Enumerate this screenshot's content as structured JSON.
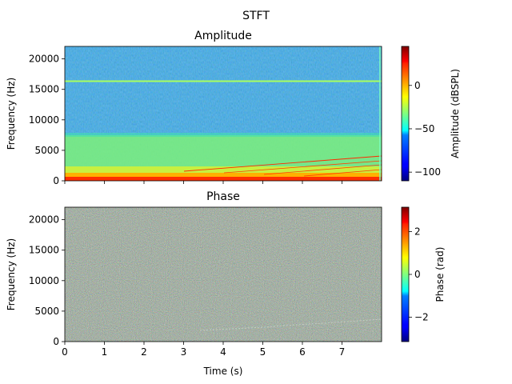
{
  "figure": {
    "title": "STFT"
  },
  "chart_data": [
    {
      "type": "heatmap",
      "title": "Amplitude",
      "xlabel": "",
      "ylabel": "Frequency (Hz)",
      "xlim": [
        0,
        8
      ],
      "ylim": [
        0,
        22050
      ],
      "x_ticks": [
        "0",
        "1",
        "2",
        "3",
        "4",
        "5",
        "6",
        "7"
      ],
      "x_ticks_shown": false,
      "y_ticks": [
        0,
        5000,
        10000,
        15000,
        20000
      ],
      "colormap": "jet",
      "colorbar": {
        "label": "Amplitude (dBSPL)",
        "range": [
          -110,
          45
        ],
        "ticks": [
          0,
          -50,
          -100
        ],
        "tick_labels": [
          "0",
          "−50",
          "−100"
        ]
      },
      "features": {
        "noise_floor_dB_above_7500Hz": -30,
        "band_1000_7500Hz_dB": -10,
        "band_0_1000Hz_dB": 15,
        "tone_line_hz": 16200,
        "tone_line_dB": -5,
        "chirp_harmonics_hz_at_end": [
          4000,
          3300,
          2600,
          1800
        ]
      }
    },
    {
      "type": "heatmap",
      "title": "Phase",
      "xlabel": "Time (s)",
      "ylabel": "Frequency (Hz)",
      "xlim": [
        0,
        8
      ],
      "ylim": [
        0,
        22050
      ],
      "x_ticks": [
        "0",
        "1",
        "2",
        "3",
        "4",
        "5",
        "6",
        "7"
      ],
      "x_ticks_shown": true,
      "y_ticks": [
        0,
        5000,
        10000,
        15000,
        20000
      ],
      "colormap": "jet",
      "colorbar": {
        "label": "Phase (rad)",
        "range": [
          -3.14159,
          3.14159
        ],
        "ticks": [
          2,
          0,
          -2
        ],
        "tick_labels": [
          "2",
          "0",
          "−2"
        ]
      },
      "features": {
        "appearance": "random phase noise"
      }
    }
  ]
}
